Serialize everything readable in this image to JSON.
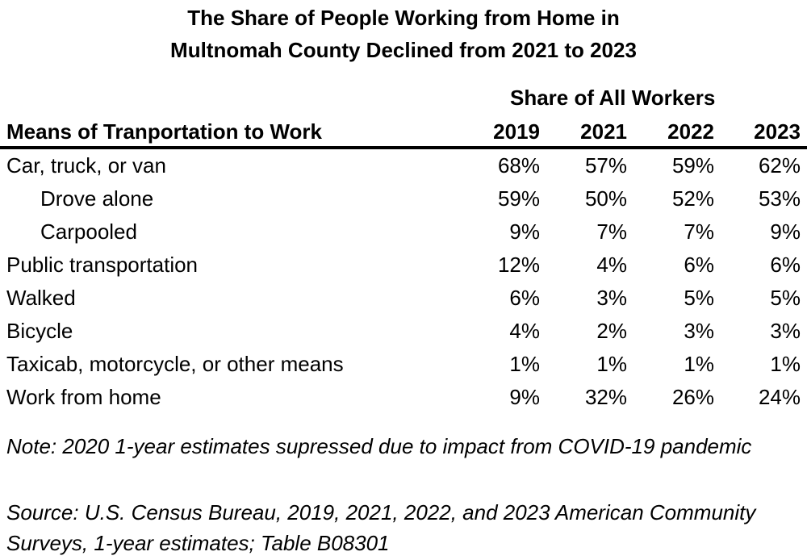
{
  "title": [
    "The Share of People Working from Home in",
    "Multnomah County Declined from 2021 to 2023"
  ],
  "group_header": "Share of All Workers",
  "row_header": "Means of Tranportation to Work",
  "years": [
    "2019",
    "2021",
    "2022",
    "2023"
  ],
  "rows": [
    {
      "label": "Car, truck, or van",
      "indent": false,
      "values": [
        "68%",
        "57%",
        "59%",
        "62%"
      ]
    },
    {
      "label": "Drove alone",
      "indent": true,
      "values": [
        "59%",
        "50%",
        "52%",
        "53%"
      ]
    },
    {
      "label": "Carpooled",
      "indent": true,
      "values": [
        "9%",
        "7%",
        "7%",
        "9%"
      ]
    },
    {
      "label": "Public transportation",
      "indent": false,
      "values": [
        "12%",
        "4%",
        "6%",
        "6%"
      ]
    },
    {
      "label": "Walked",
      "indent": false,
      "values": [
        "6%",
        "3%",
        "5%",
        "5%"
      ]
    },
    {
      "label": "Bicycle",
      "indent": false,
      "values": [
        "4%",
        "2%",
        "3%",
        "3%"
      ]
    },
    {
      "label": "Taxicab, motorcycle, or other means",
      "indent": false,
      "values": [
        "1%",
        "1%",
        "1%",
        "1%"
      ]
    },
    {
      "label": "Work from home",
      "indent": false,
      "values": [
        "9%",
        "32%",
        "26%",
        "24%"
      ]
    }
  ],
  "note": "Note: 2020 1-year estimates supressed due to impact from COVID-19 pandemic",
  "source": "Source: U.S. Census Bureau, 2019, 2021, 2022, and 2023 American Community Surveys, 1-year estimates; Table B08301"
}
